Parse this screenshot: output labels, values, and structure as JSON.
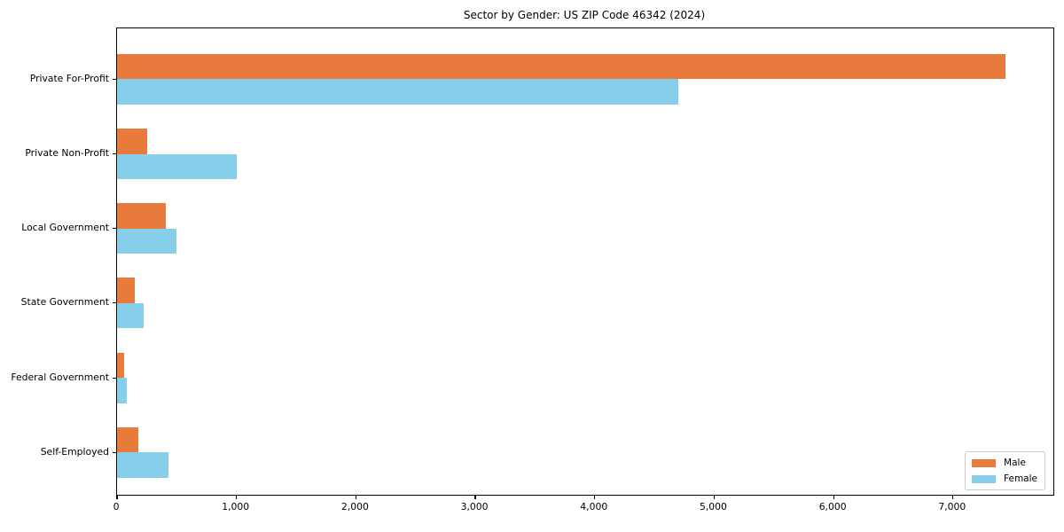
{
  "title": "Sector by Gender: US ZIP Code 46342 (2024)",
  "colors": {
    "male": "#e87a3c",
    "female": "#87ceeb",
    "axis": "#000000",
    "legend_border": "#cccccc",
    "background": "#ffffff"
  },
  "legend": {
    "male_label": "Male",
    "female_label": "Female",
    "position": "lower right"
  },
  "chart_data": {
    "type": "bar",
    "orientation": "horizontal",
    "title": "Sector by Gender: US ZIP Code 46342 (2024)",
    "categories": [
      "Private For-Profit",
      "Private Non-Profit",
      "Local Government",
      "State Government",
      "Federal Government",
      "Self-Employed"
    ],
    "series": [
      {
        "name": "Male",
        "color": "#e87a3c",
        "values": [
          7440,
          250,
          410,
          150,
          60,
          180
        ]
      },
      {
        "name": "Female",
        "color": "#87ceeb",
        "values": [
          4700,
          1000,
          500,
          220,
          80,
          430
        ]
      }
    ],
    "xlabel": "",
    "ylabel": "",
    "x_ticks": [
      0,
      1000,
      2000,
      3000,
      4000,
      5000,
      6000,
      7000
    ],
    "x_tick_labels": [
      "0",
      "1,000",
      "2,000",
      "3,000",
      "4,000",
      "5,000",
      "6,000",
      "7,000"
    ],
    "xlim": [
      0,
      7840
    ],
    "grid": false,
    "legend_position": "lower right"
  }
}
